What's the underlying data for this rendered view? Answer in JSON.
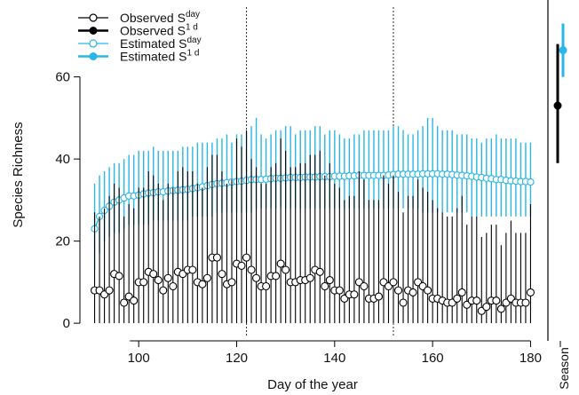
{
  "chart_data": {
    "type": "scatter",
    "xlabel": "Day of the year",
    "ylabel": "Species Richness",
    "xlim": [
      88,
      183
    ],
    "ylim": [
      -3,
      77
    ],
    "x_ticks": [
      100,
      120,
      140,
      160,
      180
    ],
    "y_ticks": [
      0,
      20,
      40,
      60
    ],
    "x_tick_labels": [
      "100",
      "120",
      "140",
      "160",
      "180"
    ],
    "y_tick_labels": [
      "0",
      "20",
      "40",
      "60"
    ],
    "reference_lines_x": [
      122,
      152
    ],
    "legend_position": "top-left",
    "legend": [
      {
        "base": "Observed S",
        "sup": "day",
        "color": "#000000",
        "marker": "open"
      },
      {
        "base": "Observed S",
        "sup": "1 d",
        "color": "#000000",
        "marker": "filled"
      },
      {
        "base": "Estimated S",
        "sup": "day",
        "color": "#29b6e8",
        "marker": "open"
      },
      {
        "base": "Estimated S",
        "sup": "1 d",
        "color": "#29b6e8",
        "marker": "filled"
      }
    ],
    "colors": {
      "observed": "#000000",
      "estimated": "#29b6e8"
    },
    "series": [
      {
        "name": "Observed Sday",
        "x": [
          91,
          92,
          93,
          94,
          95,
          96,
          97,
          98,
          99,
          100,
          101,
          102,
          103,
          104,
          105,
          106,
          107,
          108,
          109,
          110,
          111,
          112,
          113,
          114,
          115,
          116,
          117,
          118,
          119,
          120,
          121,
          122,
          123,
          124,
          125,
          126,
          127,
          128,
          129,
          130,
          131,
          132,
          133,
          134,
          135,
          136,
          137,
          138,
          139,
          140,
          141,
          142,
          143,
          144,
          145,
          146,
          147,
          148,
          149,
          150,
          151,
          152,
          153,
          154,
          155,
          156,
          157,
          158,
          159,
          160,
          161,
          162,
          163,
          164,
          165,
          166,
          167,
          168,
          169,
          170,
          171,
          172,
          173,
          174,
          175,
          176,
          177,
          178,
          179,
          180
        ],
        "y": [
          8,
          8,
          7,
          8,
          12,
          11.5,
          5,
          6.5,
          5.5,
          10,
          10,
          12.5,
          12,
          10.5,
          8,
          11,
          9,
          12.5,
          12,
          13,
          13,
          10,
          9.5,
          11,
          16,
          16,
          12,
          9.5,
          10,
          14.5,
          14,
          16,
          13,
          11,
          9,
          9,
          11.5,
          11.5,
          14.5,
          13,
          10,
          10,
          10.5,
          10.5,
          11,
          13,
          12.5,
          9,
          10.5,
          8,
          8,
          6,
          7,
          7,
          10,
          9,
          6,
          6,
          6.5,
          10,
          9,
          10,
          8,
          5,
          8,
          7.5,
          10,
          9,
          8,
          6,
          6,
          5.5,
          5,
          5,
          6,
          7.5,
          4.5,
          5.5,
          5.5,
          3,
          4,
          5.5,
          5.5,
          3.5,
          5,
          6,
          5,
          5,
          5,
          7.5
        ],
        "err_low": [
          0,
          0,
          0,
          0,
          0,
          0,
          0,
          0,
          0,
          0,
          0,
          0,
          0,
          0,
          0,
          0,
          0,
          0,
          0,
          0,
          0,
          0,
          0,
          0,
          0,
          0,
          0,
          0,
          0,
          0,
          0,
          0,
          0,
          0,
          0,
          0,
          0,
          0,
          0,
          0,
          0,
          0,
          0,
          0,
          0,
          0,
          0,
          0,
          0,
          0,
          0,
          0,
          0,
          0,
          0,
          0,
          0,
          0,
          0,
          0,
          0,
          0,
          0,
          0,
          0,
          0,
          0,
          0,
          0,
          0,
          0,
          0,
          0,
          0,
          0,
          0,
          0,
          0,
          0,
          0,
          0,
          0,
          0,
          0,
          0,
          0,
          0,
          0,
          0,
          0
        ],
        "err_high": [
          27,
          26,
          28,
          31,
          34,
          33,
          26,
          29,
          28,
          33,
          33,
          37,
          36,
          34,
          30,
          34,
          33,
          37,
          38,
          37,
          37,
          34,
          33,
          38,
          41,
          41,
          37,
          34,
          35,
          45,
          43,
          47,
          40,
          38,
          34,
          34,
          38,
          39,
          45,
          42,
          38,
          38,
          39,
          39,
          41,
          41,
          42,
          36,
          39,
          34,
          33,
          30,
          31,
          31,
          37,
          35,
          30,
          30,
          30,
          36,
          34,
          36,
          32,
          27,
          31,
          31,
          35,
          33,
          32,
          30,
          28,
          27,
          26,
          26,
          28,
          31,
          24,
          26,
          26,
          21,
          22,
          24,
          24,
          19,
          22,
          25,
          22,
          22,
          22,
          29
        ]
      },
      {
        "name": "Estimated Sday",
        "x": [
          91,
          92,
          93,
          94,
          95,
          96,
          97,
          98,
          99,
          100,
          101,
          102,
          103,
          104,
          105,
          106,
          107,
          108,
          109,
          110,
          111,
          112,
          113,
          114,
          115,
          116,
          117,
          118,
          119,
          120,
          121,
          122,
          123,
          124,
          125,
          126,
          127,
          128,
          129,
          130,
          131,
          132,
          133,
          134,
          135,
          136,
          137,
          138,
          139,
          140,
          141,
          142,
          143,
          144,
          145,
          146,
          147,
          148,
          149,
          150,
          151,
          152,
          153,
          154,
          155,
          156,
          157,
          158,
          159,
          160,
          161,
          162,
          163,
          164,
          165,
          166,
          167,
          168,
          169,
          170,
          171,
          172,
          173,
          174,
          175,
          176,
          177,
          178,
          179,
          180
        ],
        "y": [
          23,
          26,
          27.5,
          28.5,
          29.5,
          30,
          30.5,
          31,
          31,
          31.2,
          31.5,
          31.7,
          31.8,
          32,
          32,
          32.2,
          32.3,
          32.4,
          32.5,
          32.6,
          32.8,
          33,
          33.2,
          33.5,
          33.8,
          34,
          34.1,
          34.2,
          34.4,
          34.5,
          34.6,
          34.8,
          35,
          35,
          35,
          35.1,
          35.2,
          35.3,
          35.3,
          35.4,
          35.5,
          35.5,
          35.5,
          35.6,
          35.6,
          35.6,
          35.7,
          35.7,
          35.7,
          35.8,
          35.8,
          35.8,
          35.9,
          35.9,
          36,
          36,
          36,
          36,
          36,
          36,
          36.1,
          36.2,
          36.3,
          36.3,
          36.3,
          36.3,
          36.3,
          36.4,
          36.4,
          36.4,
          36.4,
          36.3,
          36.3,
          36.2,
          36.1,
          36,
          35.9,
          35.8,
          35.6,
          35.5,
          35.3,
          35.2,
          35,
          35,
          34.8,
          34.7,
          34.6,
          34.5,
          34.5,
          34.4
        ],
        "err_low": [
          13,
          17,
          20,
          21,
          22,
          22,
          23,
          24,
          24,
          24,
          24,
          24,
          25,
          25,
          25,
          25,
          25,
          25,
          25,
          25,
          26,
          26,
          26,
          26,
          26,
          27,
          27,
          27,
          27,
          27,
          27,
          27,
          27,
          28,
          28,
          28,
          28,
          28,
          28,
          28,
          28,
          28,
          28,
          28,
          28,
          28,
          28,
          28,
          28,
          28,
          28,
          28,
          28,
          28,
          28,
          28,
          28,
          28,
          28,
          28,
          28,
          28,
          28,
          28,
          28,
          28,
          28,
          27,
          27,
          27,
          27,
          27,
          27,
          27,
          27,
          27,
          27,
          26,
          26,
          26,
          26,
          26,
          26,
          26,
          26,
          26,
          26,
          26,
          26,
          26
        ],
        "err_high": [
          34,
          36,
          37,
          38,
          39,
          39,
          40,
          41,
          41,
          42,
          42,
          42,
          43,
          42,
          42,
          42,
          42,
          42,
          43,
          43,
          43,
          44,
          44,
          44,
          44,
          45,
          45,
          46,
          44,
          46,
          46,
          47,
          48,
          50,
          46,
          45,
          46,
          47,
          47,
          48,
          48,
          46,
          47,
          47,
          47,
          48,
          48,
          46,
          47,
          47,
          46,
          45,
          45,
          46,
          46,
          47,
          47,
          47,
          47,
          47,
          47,
          48,
          48,
          47,
          46,
          46,
          47,
          48,
          50,
          50,
          48,
          47,
          47,
          47,
          46,
          46,
          46,
          45,
          45,
          44,
          45,
          45,
          46,
          45,
          45,
          45,
          45,
          44,
          44,
          44
        ]
      }
    ],
    "season": {
      "label": "Season",
      "observed": {
        "y": 53,
        "low": 39,
        "high": 68
      },
      "estimated": {
        "y": 66.5,
        "low": 60,
        "high": 73
      }
    }
  }
}
